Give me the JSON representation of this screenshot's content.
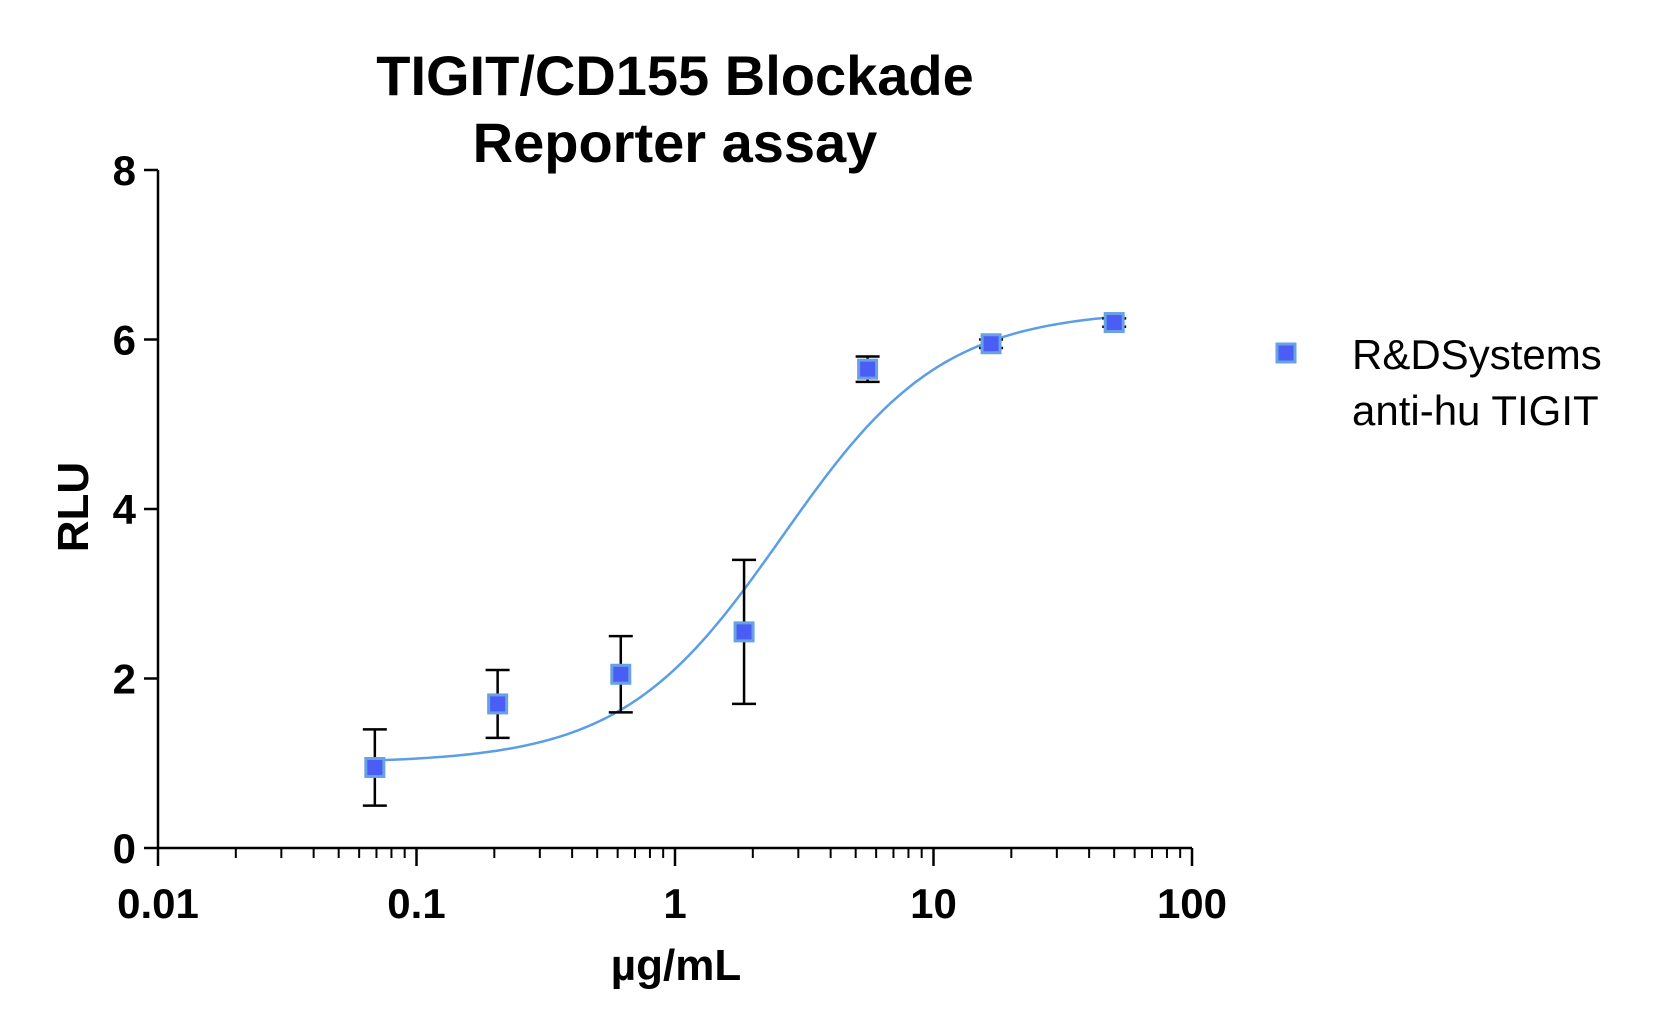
{
  "chart_data": {
    "type": "scatter",
    "title_lines": [
      "TIGIT/CD155 Blockade",
      "Reporter assay"
    ],
    "xlabel": "µg/mL",
    "ylabel": "RLU",
    "xscale": "log",
    "xlim": [
      0.01,
      100
    ],
    "ylim": [
      0,
      8
    ],
    "x_ticks": [
      {
        "value": 0.01,
        "label": "0.01"
      },
      {
        "value": 0.1,
        "label": "0.1"
      },
      {
        "value": 1,
        "label": "1"
      },
      {
        "value": 10,
        "label": "10"
      },
      {
        "value": 100,
        "label": "100"
      }
    ],
    "y_ticks": [
      {
        "value": 0,
        "label": "0"
      },
      {
        "value": 2,
        "label": "2"
      },
      {
        "value": 4,
        "label": "4"
      },
      {
        "value": 6,
        "label": "6"
      },
      {
        "value": 8,
        "label": "8"
      }
    ],
    "grid": false,
    "legend_position": "right",
    "series": [
      {
        "name_lines": [
          "R&DSystems",
          "anti-hu TIGIT"
        ],
        "marker": "square",
        "marker_color": "#4a5ef5",
        "marker_edge_color": "#6aa0e6",
        "points": [
          {
            "x": 0.069,
            "y": 0.95,
            "yerr_low": 0.5,
            "yerr_high": 1.4
          },
          {
            "x": 0.206,
            "y": 1.7,
            "yerr_low": 1.3,
            "yerr_high": 2.1
          },
          {
            "x": 0.617,
            "y": 2.05,
            "yerr_low": 1.6,
            "yerr_high": 2.5
          },
          {
            "x": 1.85,
            "y": 2.55,
            "yerr_low": 1.7,
            "yerr_high": 3.4
          },
          {
            "x": 5.56,
            "y": 5.65,
            "yerr_low": 5.5,
            "yerr_high": 5.8
          },
          {
            "x": 16.7,
            "y": 5.95,
            "yerr_low": 5.9,
            "yerr_high": 6.0
          },
          {
            "x": 50,
            "y": 6.2,
            "yerr_low": 6.15,
            "yerr_high": 6.25
          }
        ],
        "fit": {
          "model": "4PL",
          "bottom": 1.0,
          "top": 6.35,
          "ec50": 2.6,
          "hill": 1.4,
          "x_range": [
            0.069,
            50
          ],
          "color": "#5b9ee6"
        }
      }
    ]
  }
}
